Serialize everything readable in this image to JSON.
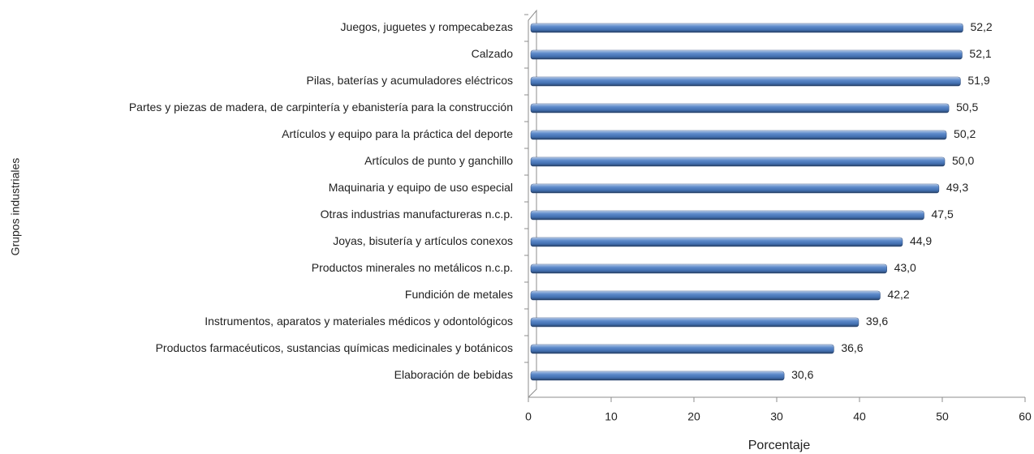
{
  "chart_data": {
    "type": "bar",
    "orientation": "horizontal",
    "xlabel": "Porcentaje",
    "ylabel": "Grupos industriales",
    "categories": [
      "Juegos, juguetes y rompecabezas",
      "Calzado",
      "Pilas, baterías y acumuladores eléctricos",
      "Partes y piezas de madera, de carpintería y ebanistería para la construcción",
      "Artículos y equipo para la práctica del deporte",
      "Artículos de punto y ganchillo",
      "Maquinaria y equipo de uso especial",
      "Otras industrias manufactureras n.c.p.",
      "Joyas, bisutería y artículos conexos",
      "Productos minerales no metálicos n.c.p.",
      "Fundición de metales",
      "Instrumentos, aparatos y materiales médicos y odontológicos",
      "Productos farmacéuticos, sustancias químicas medicinales y botánicos",
      "Elaboración de bebidas"
    ],
    "values": [
      52.2,
      52.1,
      51.9,
      50.5,
      50.2,
      50.0,
      49.3,
      47.5,
      44.9,
      43.0,
      42.2,
      39.6,
      36.6,
      30.6
    ],
    "value_labels": [
      "52,2",
      "52,1",
      "51,9",
      "50,5",
      "50,2",
      "50,0",
      "49,3",
      "47,5",
      "44,9",
      "43,0",
      "42,2",
      "39,6",
      "36,6",
      "30,6"
    ],
    "color": "#4a7cc4",
    "xlim": [
      0,
      60
    ],
    "xticks": [
      0,
      10,
      20,
      30,
      40,
      50,
      60
    ],
    "grid": false
  }
}
